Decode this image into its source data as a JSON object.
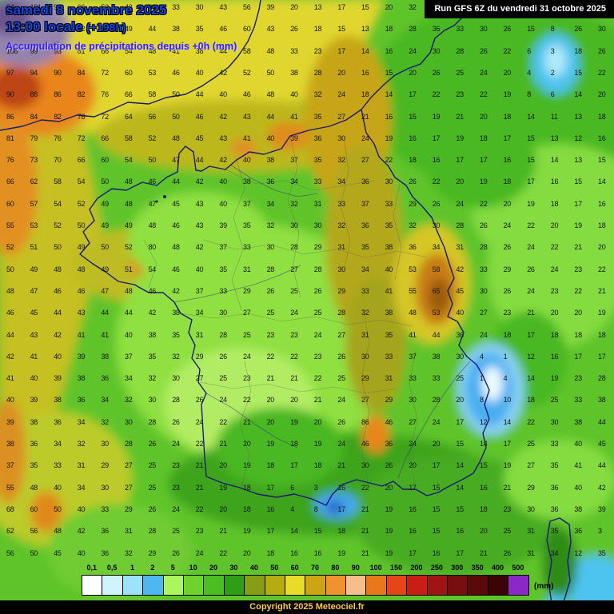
{
  "title": {
    "date": "samedi 8 novembre 2025",
    "time": "13:00 locale",
    "offset": "(+198h)",
    "subtitle": "Accumulation de précipitations depuis +0h (mm)"
  },
  "run_box": {
    "text": "Run GFS 6Z du vendredi 31 octobre 2025"
  },
  "footer": {
    "copyright": "Copyright 2025 Meteociel.fr"
  },
  "legend": {
    "unit": "(mm)",
    "entries": [
      {
        "label": "0,1",
        "color": "#FFFFFF"
      },
      {
        "label": "0,5",
        "color": "#CFF4FE"
      },
      {
        "label": "1",
        "color": "#9BE2FA"
      },
      {
        "label": "2",
        "color": "#4FB6F0"
      },
      {
        "label": "5",
        "color": "#ABF55F"
      },
      {
        "label": "10",
        "color": "#6ED42D"
      },
      {
        "label": "20",
        "color": "#4CBE22"
      },
      {
        "label": "30",
        "color": "#2E9E19"
      },
      {
        "label": "40",
        "color": "#879E14"
      },
      {
        "label": "50",
        "color": "#B4AC10"
      },
      {
        "label": "60",
        "color": "#E8DC28"
      },
      {
        "label": "70",
        "color": "#CCA414"
      },
      {
        "label": "80",
        "color": "#F0922D"
      },
      {
        "label": "90",
        "color": "#F5BE8C"
      },
      {
        "label": "100",
        "color": "#E87819"
      },
      {
        "label": "150",
        "color": "#E64617"
      },
      {
        "label": "200",
        "color": "#C81E14"
      },
      {
        "label": "250",
        "color": "#A01414"
      },
      {
        "label": "300",
        "color": "#780F0F"
      },
      {
        "label": "350",
        "color": "#5A0A0A"
      },
      {
        "label": "400",
        "color": "#3C0505"
      },
      {
        "label": "500",
        "color": "#8C28C8"
      }
    ]
  },
  "map": {
    "values_grid": [
      "94 101 97 66 52 43 39 33 30 43 56 39 20 13 17 15 20 32 43 38 33 30 23 28 38 33",
      "116 104 99 72 58 49 44 38 35 46 60 43 26 18 15 13 18 28 36 33 30 26 15 8 26 30",
      "108 99 93 81 66 54 48 41 38 44 58 48 33 23 17 14 16 24 30 28 26 22 6 3 18 26",
      "97 94 90 84 72 60 53 46 40 42 52 50 38 28 20 16 15 20 26 25 24 20 4 2 15 22",
      "90 88 86 82 76 66 58 50 44 40 46 48 40 32 24 18 14 17 22 23 22 19 8 6 14 20",
      "86 84 82 78 72 64 56 50 46 42 43 44 41 35 27 21 16 15 19 21 20 18 14 11 13 18",
      "81 79 76 72 66 58 52 48 45 43 41 40 39 36 30 24 19 16 17 19 18 17 15 13 12 16",
      "76 73 70 66 60 54 50 47 44 42 40 38 37 35 32 27 22 18 16 17 17 16 15 14 13 15",
      "66 62 58 54 50 48 46 44 42 40 38 36 34 33 34 36 30 26 22 20 19 18 17 16 15 14",
      "60 57 54 52 49 48 47 45 43 40 37 34 32 31 33 37 33 29 26 24 22 20 19 18 17 16",
      "55 53 52 50 49 49 48 46 43 39 35 32 30 30 32 36 35 32 30 28 26 24 22 20 19 18",
      "52 51 50 49 50 52 80 48 42 37 33 30 28 29 31 35 38 36 34 31 28 26 24 22 21 20",
      "50 49 48 48 49 51 54 46 40 35 31 28 27 28 30 34 40 53 58 42 33 29 26 24 23 22",
      "48 47 46 46 47 48 46 42 37 33 29 26 25 26 29 33 41 55 65 45 30 26 24 23 22 21",
      "46 45 44 43 44 44 42 38 34 30 27 25 24 25 28 32 38 48 53 40 27 23 21 20 20 19",
      "44 43 42 41 41 40 38 35 31 28 25 23 23 24 27 31 35 41 44 36 24 18 17 18 18 18",
      "42 41 40 39 38 37 35 32 29 26 24 22 22 23 26 30 33 37 38 30 4 1 12 16 17 17",
      "41 40 39 38 36 34 32 30 27 25 23 21 21 22 25 29 31 33 33 25 1 4 14 19 23 28",
      "40 39 38 36 34 32 30 28 26 24 22 20 20 21 24 27 29 30 28 20 8 10 18 25 33 38",
      "39 38 36 34 32 30 28 26 24 22 21 20 19 20 26 86 46 27 24 17 12 14 22 30 38 44",
      "38 36 34 32 30 28 26 24 22 21 20 19 18 19 24 46 36 24 20 15 14 17 25 33 40 45",
      "37 35 33 31 29 27 25 23 21 20 19 18 17 18 21 30 26 20 17 14 15 19 27 35 41 44",
      "55 48 40 34 30 27 25 23 21 19 18 17 6 3 16 22 20 17 15 14 16 21 29 36 40 42",
      "68 60 50 40 33 29 26 24 22 20 18 16 4 8 17 21 19 16 15 15 18 23 30 36 38 39",
      "62 56 48 42 36 31 28 25 23 21 19 17 14 15 18 21 19 16 15 16 20 25 31 35 36 3",
      "56 50 45 40 36 32 29 26 24 22 20 18 16 16 19 21 19 17 16 17 21 26 31 34 12 35"
    ]
  }
}
